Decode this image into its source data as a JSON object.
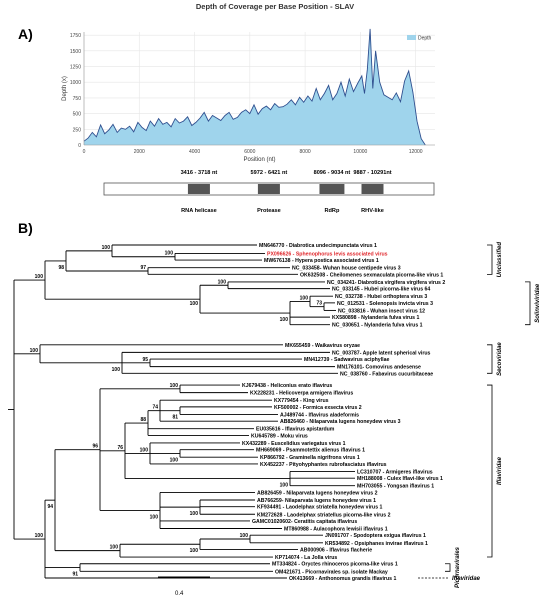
{
  "figure": {
    "panel_a_label": "A)",
    "panel_b_label": "B)"
  },
  "chart_data": {
    "type": "area",
    "title": "Depth of Coverage per Base Position - SLAV",
    "xlabel": "Position (nt)",
    "ylabel": "Depth (x)",
    "xlim": [
      0,
      12700
    ],
    "ylim": [
      0,
      1800
    ],
    "xticks": [
      0,
      2000,
      4000,
      6000,
      8000,
      10000,
      12000
    ],
    "yticks": [
      0,
      250,
      500,
      750,
      1000,
      1250,
      1500,
      1750
    ],
    "legend": {
      "label": "Depth",
      "placement": "top-right"
    },
    "grid": true,
    "fill_color": "#9fd4ec",
    "line_color": "#2f4f8f",
    "x": [
      0,
      150,
      300,
      450,
      600,
      750,
      900,
      1050,
      1200,
      1350,
      1500,
      1650,
      1800,
      1950,
      2100,
      2250,
      2400,
      2550,
      2700,
      2850,
      3000,
      3150,
      3300,
      3450,
      3600,
      3750,
      3900,
      4050,
      4200,
      4350,
      4500,
      4650,
      4800,
      4950,
      5100,
      5250,
      5400,
      5550,
      5700,
      5850,
      6000,
      6150,
      6300,
      6450,
      6600,
      6750,
      6900,
      7050,
      7200,
      7350,
      7500,
      7650,
      7800,
      7950,
      8100,
      8250,
      8400,
      8550,
      8700,
      8850,
      9000,
      9150,
      9300,
      9450,
      9600,
      9750,
      9900,
      10050,
      10150,
      10250,
      10350,
      10450,
      10550,
      10700,
      10850,
      11000,
      11150,
      11300,
      11450,
      11600,
      11750,
      11900,
      12050,
      12200,
      12350
    ],
    "values": [
      60,
      110,
      200,
      130,
      320,
      180,
      240,
      330,
      200,
      270,
      250,
      300,
      210,
      360,
      280,
      230,
      380,
      300,
      420,
      330,
      360,
      290,
      420,
      350,
      380,
      450,
      310,
      360,
      430,
      520,
      380,
      470,
      430,
      390,
      470,
      520,
      410,
      440,
      520,
      560,
      500,
      640,
      490,
      580,
      620,
      560,
      660,
      600,
      610,
      650,
      720,
      640,
      760,
      680,
      780,
      700,
      900,
      720,
      820,
      950,
      720,
      820,
      1000,
      780,
      1050,
      850,
      980,
      1100,
      820,
      1200,
      1850,
      900,
      1500,
      1000,
      800,
      760,
      720,
      830,
      690,
      1020,
      1180,
      840,
      380,
      100,
      0
    ]
  },
  "genome_map": {
    "domains": [
      {
        "range": "3416 - 3718 nt",
        "name": "RNA helicase",
        "start": 3416,
        "end": 3718
      },
      {
        "range": "5972 - 6421 nt",
        "name": "Protease",
        "start": 5972,
        "end": 6421
      },
      {
        "range": "8096 - 9034 nt",
        "name": "RdRp",
        "start": 8096,
        "end": 9034
      },
      {
        "range": "9887 - 10291nt",
        "name": "RHV-like",
        "start": 9887,
        "end": 10291
      }
    ],
    "length": 12400
  },
  "tree": {
    "scale_bar_label": "0.4",
    "highlight_color": "#e0262b",
    "leaves": [
      {
        "label": "MN646770 - Diabrotica undecimpunctata virus 1"
      },
      {
        "label": "PX096626 - Sphenophorus levis associated virus",
        "highlight": true
      },
      {
        "label": "MW676138 - Hypera postica associated virus 1"
      },
      {
        "label": "NC_033458- Wuhan house centipede virus 3"
      },
      {
        "label": "OK632508 - Cheilomenes sexmaculata picorna-like virus 1"
      },
      {
        "label": "NC_034241- Diabrotica virgifera virgifera virus 2"
      },
      {
        "label": "NC_033145 - Hubei picorna-like virus 64"
      },
      {
        "label": "NC_032738 - Hubei orthoptera virus 3"
      },
      {
        "label": "NC_012531 - Solenopsis invicta virus 3"
      },
      {
        "label": "NC_033816 - Wuhan insect virus 12"
      },
      {
        "label": "KX580898 - Nylanderia fulva virus 1"
      },
      {
        "label": "NC_030651 - Nylanderia fulva virus 1"
      },
      {
        "label": "MK655459 - Waikavirus oryzae"
      },
      {
        "label": "NC_003787- Apple latent spherical virus"
      },
      {
        "label": "MN412739 - Sadwavirus aciphyllae"
      },
      {
        "label": "MN176101- Comovirus andesense"
      },
      {
        "label": "NC_038760 - Fabavirus cucurbitaceae"
      },
      {
        "label": "KJ679438 - Heliconius erato iflavirus"
      },
      {
        "label": "KX228231 - Helicoverpa armigera iflavirus"
      },
      {
        "label": "KX779454 - King virus"
      },
      {
        "label": "KF500002 - Formica exsecta virus 2"
      },
      {
        "label": "AJ489744 - Iflavirus aladeformis"
      },
      {
        "label": "AB826460 - Nilaparvata lugens honeydew virus 3"
      },
      {
        "label": "EU035616 - Iflavirus apistardum"
      },
      {
        "label": "KU645789 - Moku virus"
      },
      {
        "label": "KX432289 - Euscelidius variegatus virus 1"
      },
      {
        "label": "MH669069 - Psammotettix alienus iflavirus 1"
      },
      {
        "label": "KP866792 - Graminella nigrifrons virus 1"
      },
      {
        "label": "KX452237 - Pityohyphantes rubrofasciatus iflavirus"
      },
      {
        "label": "LC310707 - Armigeres iflavirus"
      },
      {
        "label": "MH188008 - Culex Iflavi-like virus 1"
      },
      {
        "label": "MH703055 - Yongsan iflavirus 1"
      },
      {
        "label": "AB826459 - Nilaparvata lugens honeydew virus 2"
      },
      {
        "label": "AB766259- Nilaparvata lugens honeydew virus 1"
      },
      {
        "label": "KF934491 - Laodelphax striatella honeydew virus 1"
      },
      {
        "label": "KM272628 - Laodelphax striatellus picorna-like virus 2"
      },
      {
        "label": "GAMC01020602- Ceratitis capitata iflavirus"
      },
      {
        "label": "MT860988 - Aulacophora lewisii iflavirus 1"
      },
      {
        "label": "JN091707 - Spodoptera exigua iflavirus 1"
      },
      {
        "label": "KR534892 - Opsiphanes invirae iflavirus 1"
      },
      {
        "label": "AB000906 - Iflavirus flacherie"
      },
      {
        "label": "KP714074 - La Jolla virus"
      },
      {
        "label": "MT334824 - Oryctes rhinoceros picorna-like virus 1"
      },
      {
        "label": "OM421671 - Picornavirales sp. isolate Mackay"
      },
      {
        "label": "OK413669 - Anthonomus grandis iflavirus 1"
      }
    ],
    "bootstraps": [
      "100",
      "100",
      "98",
      "97",
      "100",
      "100",
      "100",
      "73",
      "100",
      "100",
      "95",
      "100",
      "100",
      "100",
      "88",
      "74",
      "81",
      "100",
      "100",
      "76",
      "100",
      "100",
      "96",
      "100",
      "100",
      "100",
      "100",
      "94",
      "91",
      "100"
    ],
    "groups": [
      {
        "label": "Unclassified"
      },
      {
        "label": "Solinviviridae"
      },
      {
        "label": "Secoviridae"
      },
      {
        "label": "Iflaviridae"
      },
      {
        "label": "Picornavirales"
      },
      {
        "label": "Iflaviridae"
      }
    ]
  }
}
